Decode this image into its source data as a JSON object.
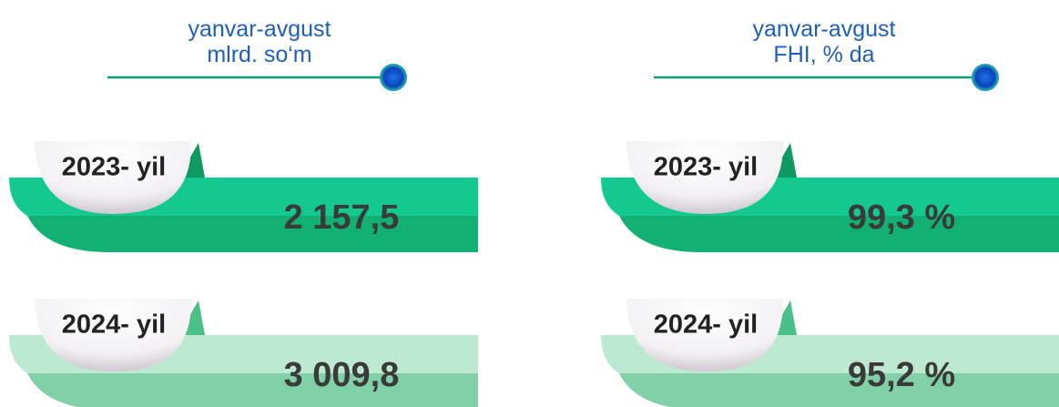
{
  "panels": [
    {
      "header": [
        "yanvar-avgust",
        "mlrd. so‘m"
      ],
      "rows": [
        {
          "label": "2023- yil",
          "value": "2 157,5"
        },
        {
          "label": "2024- yil",
          "value": "3 009,8"
        }
      ]
    },
    {
      "header": [
        "yanvar-avgust",
        "FHI, % da"
      ],
      "rows": [
        {
          "label": "2023- yil",
          "value": "99,3 %"
        },
        {
          "label": "2024- yil",
          "value": "95,2 %"
        }
      ]
    }
  ]
}
